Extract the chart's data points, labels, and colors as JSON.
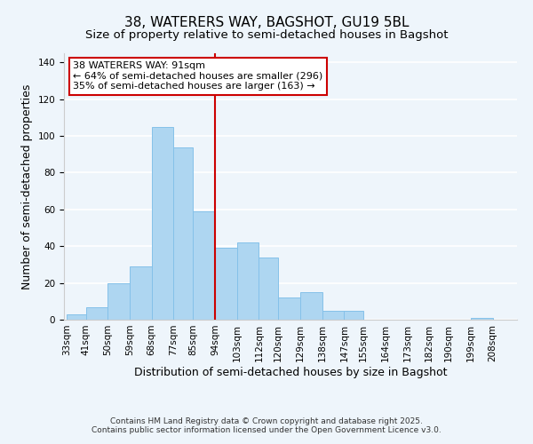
{
  "title": "38, WATERERS WAY, BAGSHOT, GU19 5BL",
  "subtitle": "Size of property relative to semi-detached houses in Bagshot",
  "xlabel": "Distribution of semi-detached houses by size in Bagshot",
  "ylabel": "Number of semi-detached properties",
  "bar_color": "#aed6f1",
  "bar_edge_color": "#85c1e9",
  "bins": [
    33,
    41,
    50,
    59,
    68,
    77,
    85,
    94,
    103,
    112,
    120,
    129,
    138,
    147,
    155,
    164,
    173,
    182,
    190,
    199,
    208
  ],
  "bin_labels": [
    "33sqm",
    "41sqm",
    "50sqm",
    "59sqm",
    "68sqm",
    "77sqm",
    "85sqm",
    "94sqm",
    "103sqm",
    "112sqm",
    "120sqm",
    "129sqm",
    "138sqm",
    "147sqm",
    "155sqm",
    "164sqm",
    "173sqm",
    "182sqm",
    "190sqm",
    "199sqm",
    "208sqm"
  ],
  "heights": [
    3,
    7,
    20,
    29,
    105,
    94,
    59,
    39,
    42,
    34,
    12,
    15,
    5,
    5,
    0,
    0,
    0,
    0,
    0,
    1
  ],
  "ylim": [
    0,
    145
  ],
  "yticks": [
    0,
    20,
    40,
    60,
    80,
    100,
    120,
    140
  ],
  "vline_x": 94,
  "vline_color": "#cc0000",
  "annotation_title": "38 WATERERS WAY: 91sqm",
  "annotation_line1": "← 64% of semi-detached houses are smaller (296)",
  "annotation_line2": "35% of semi-detached houses are larger (163) →",
  "annotation_box_color": "#cc0000",
  "footer1": "Contains HM Land Registry data © Crown copyright and database right 2025.",
  "footer2": "Contains public sector information licensed under the Open Government Licence v3.0.",
  "background_color": "#eef5fb",
  "grid_color": "#ffffff",
  "title_fontsize": 11,
  "subtitle_fontsize": 9.5,
  "tick_label_fontsize": 7.5,
  "axis_label_fontsize": 9,
  "footer_fontsize": 6.5
}
